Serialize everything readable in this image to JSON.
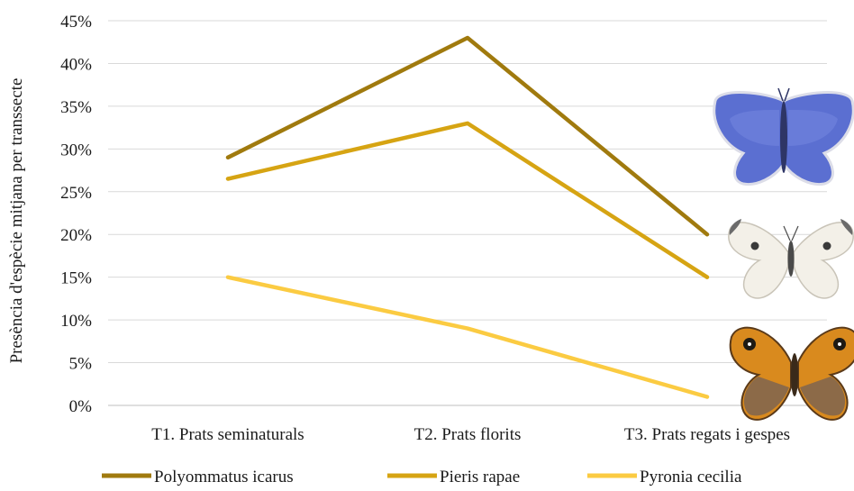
{
  "chart_data": {
    "type": "line",
    "title": "",
    "xlabel": "",
    "ylabel": "Presència d'espècie mitjana per transsecte",
    "categories": [
      "T1. Prats seminaturals",
      "T2. Prats florits",
      "T3. Prats regats i gespes"
    ],
    "ylim": [
      0,
      0.45
    ],
    "yticks": [
      0,
      0.05,
      0.1,
      0.15,
      0.2,
      0.25,
      0.3,
      0.35,
      0.4,
      0.45
    ],
    "ytick_labels": [
      "0%",
      "5%",
      "10%",
      "15%",
      "20%",
      "25%",
      "30%",
      "35%",
      "40%",
      "45%"
    ],
    "grid": "horizontal",
    "legend_position": "bottom",
    "series": [
      {
        "name": "Polyommatus icarus",
        "values": [
          0.29,
          0.43,
          0.2
        ],
        "color": "#A07A0E"
      },
      {
        "name": "Pieris rapae",
        "values": [
          0.265,
          0.33,
          0.15
        ],
        "color": "#D6A413"
      },
      {
        "name": "Pyronia cecilia",
        "values": [
          0.15,
          0.09,
          0.01
        ],
        "color": "#FBCB42"
      }
    ],
    "illustrations": [
      {
        "icon": "common-blue-butterfly-icon",
        "color": "#5B6FD1"
      },
      {
        "icon": "small-white-butterfly-icon",
        "color": "#EDE9E0"
      },
      {
        "icon": "gatekeeper-butterfly-icon",
        "color": "#D98A1E"
      }
    ]
  }
}
